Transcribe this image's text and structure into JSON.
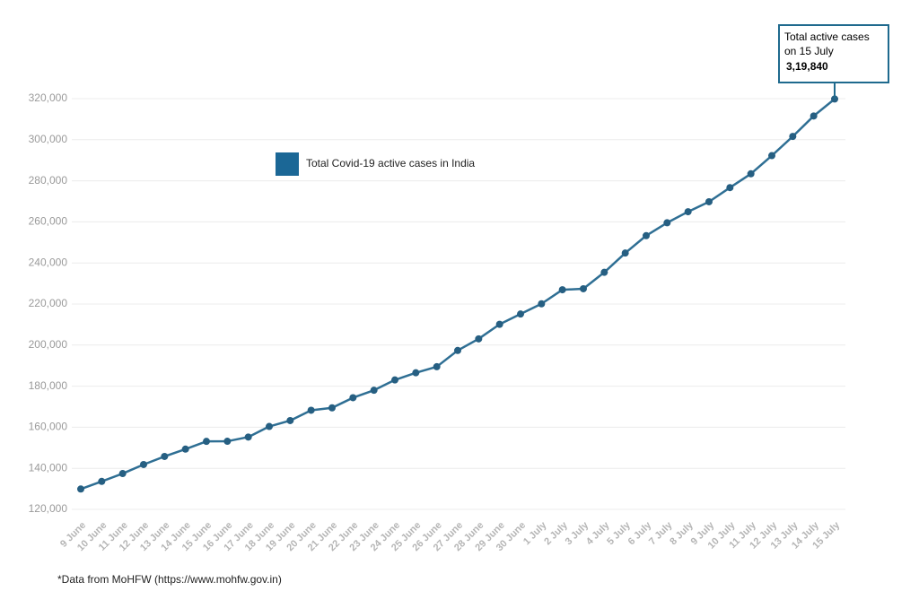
{
  "chart_data": {
    "type": "line",
    "categories": [
      "9 June",
      "10 June",
      "11 June",
      "12 June",
      "13 June",
      "14 June",
      "15 June",
      "16 June",
      "17 June",
      "18 June",
      "19 June",
      "20 June",
      "21 June",
      "22 June",
      "23 June",
      "24 June",
      "25 June",
      "26 June",
      "27 June",
      "28 June",
      "29 June",
      "30 June",
      "1 July",
      "2 July",
      "3 July",
      "4 July",
      "5 July",
      "6 July",
      "7 July",
      "8 July",
      "9 July",
      "10 July",
      "11 July",
      "12 July",
      "13 July",
      "14 July",
      "15 July"
    ],
    "series": [
      {
        "name": "Total Covid-19 active cases in India",
        "color": "#2f6f94",
        "values": [
          129917,
          133632,
          137448,
          141842,
          145779,
          149348,
          153106,
          153178,
          155227,
          160384,
          163248,
          168269,
          169451,
          174387,
          178014,
          183022,
          186514,
          189463,
          197387,
          203051,
          210120,
          215125,
          220114,
          226947,
          227439,
          235433,
          244814,
          253287,
          259557,
          264944,
          269789,
          276682,
          283407,
          292258,
          301609,
          311565,
          319840
        ]
      }
    ],
    "value_labels": [
      null,
      null,
      null,
      null,
      null,
      null,
      null,
      null,
      null,
      null,
      null,
      null,
      null,
      null,
      null,
      null,
      null,
      null,
      null,
      null,
      null,
      null,
      null,
      null,
      null,
      null,
      null,
      null,
      null,
      null,
      null,
      null,
      null,
      null,
      null,
      null,
      "3,19,840"
    ],
    "annotation": [
      "Total active cases",
      "on 15 July"
    ],
    "ylim": [
      120000,
      320000
    ],
    "yticks": [
      {
        "value": 120000,
        "label": "120,000"
      },
      {
        "value": 140000,
        "label": "140,000"
      },
      {
        "value": 160000,
        "label": "160,000"
      },
      {
        "value": 180000,
        "label": "180,000"
      },
      {
        "value": 200000,
        "label": "200,000"
      },
      {
        "value": 220000,
        "label": "220,000"
      },
      {
        "value": 240000,
        "label": "240,000"
      },
      {
        "value": 260000,
        "label": "260,000"
      },
      {
        "value": 280000,
        "label": "280,000"
      },
      {
        "value": 300000,
        "label": "300,000"
      },
      {
        "value": 320000,
        "label": "320,000"
      }
    ],
    "grid": true,
    "footnote": "*Data from MoHFW (https://www.mohfw.gov.in)"
  }
}
